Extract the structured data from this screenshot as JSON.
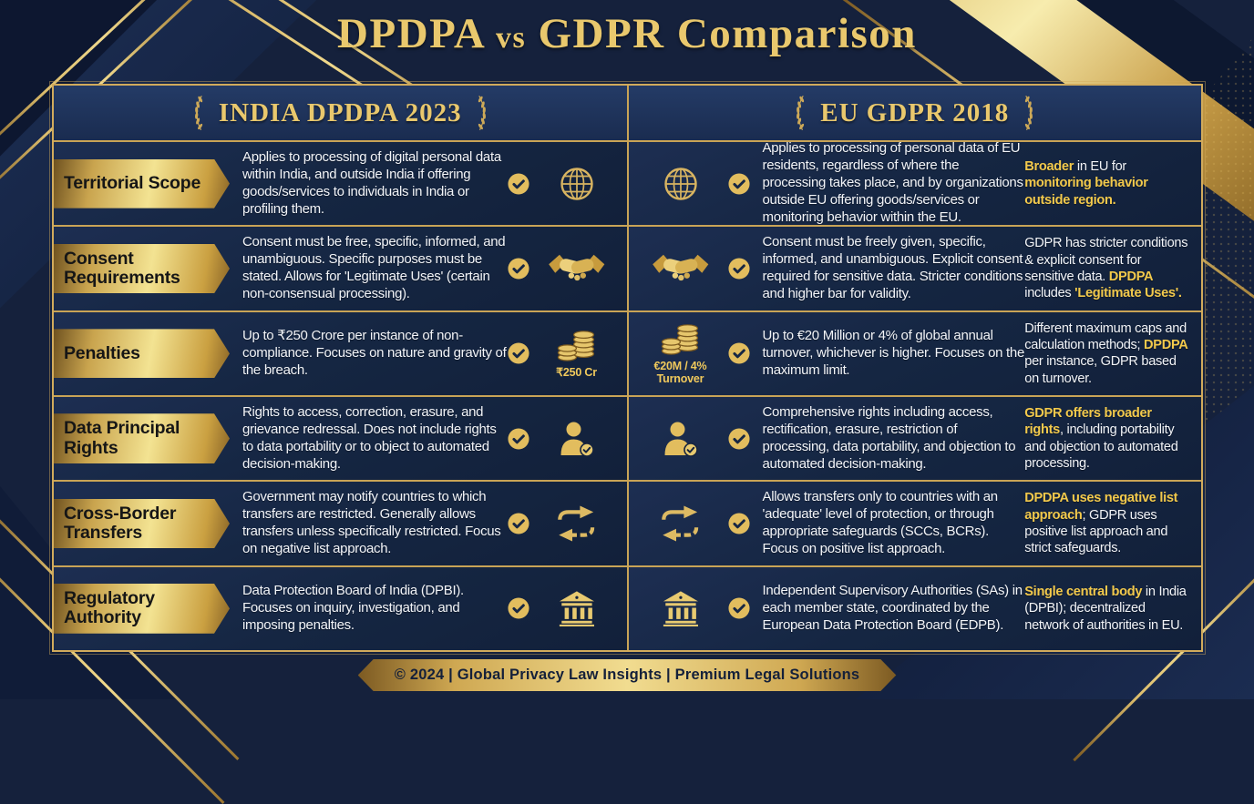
{
  "title": {
    "left": "DPDPA",
    "vs": "vs",
    "right": "GDPR Comparison"
  },
  "colors": {
    "background_navy": "#15213c",
    "cell_navy": "#152642",
    "gold_accent": "#d2ab5c",
    "gold_bright": "#f3e392",
    "highlight_text": "#f2c94c",
    "body_text": "#f2f4f8",
    "badge_text": "#161616"
  },
  "table": {
    "headers": {
      "left": "INDIA DPDPA 2023",
      "right": "EU GDPR 2018"
    },
    "rows": [
      {
        "label": "Territorial Scope",
        "icon": "globe",
        "dpdpa": {
          "text": "Applies to processing of digital personal data within India, and outside India if offering goods/services to individuals in India or profiling them."
        },
        "gdpr": {
          "text": "Applies to processing of personal data of EU residents, regardless of where the processing takes place, and by organizations outside EU offering goods/services or monitoring behavior within the EU.",
          "note_segments": [
            {
              "text": "Broader",
              "highlight": true
            },
            {
              "text": " in EU for ",
              "highlight": false
            },
            {
              "text": "monitoring behavior outside region.",
              "highlight": true
            }
          ]
        }
      },
      {
        "label": "Consent Requirements",
        "icon": "handshake",
        "dpdpa": {
          "text": "Consent must be free, specific, informed, and unambiguous. Specific purposes must be stated. Allows for 'Legitimate Uses' (certain non-consensual processing)."
        },
        "gdpr": {
          "text": "Consent must be freely given, specific, informed, and unambiguous. Explicit consent required for sensitive data. Stricter conditions and higher bar for validity.",
          "note_segments": [
            {
              "text": "GDPR has stricter conditions & explicit consent for sensitive data. ",
              "highlight": false
            },
            {
              "text": "DPDPA",
              "highlight": true
            },
            {
              "text": " includes ",
              "highlight": false
            },
            {
              "text": "'Legitimate Uses'.",
              "highlight": true
            }
          ]
        }
      },
      {
        "label": "Penalties",
        "icon": "coins",
        "dpdpa": {
          "text": "Up to ₹250 Crore per instance of non-compliance. Focuses on nature and gravity of the breach.",
          "icon_caption": "₹250 Cr"
        },
        "gdpr": {
          "text": "Up to €20 Million or 4% of global annual turnover, whichever is higher. Focuses on the maximum limit.",
          "icon_caption": "€20M / 4% Turnover",
          "note_segments": [
            {
              "text": "Different maximum caps and calculation methods; ",
              "highlight": false
            },
            {
              "text": "DPDPA",
              "highlight": true
            },
            {
              "text": " per instance, GDPR based on turnover.",
              "highlight": false
            }
          ]
        }
      },
      {
        "label": "Data Principal Rights",
        "icon": "person-check",
        "dpdpa": {
          "text": "Rights to access, correction, erasure, and grievance redressal. Does not include rights to data portability or to object to automated decision-making."
        },
        "gdpr": {
          "text": "Comprehensive rights including access, rectification, erasure, restriction of processing, data portability, and objection to automated decision-making.",
          "note_segments": [
            {
              "text": "GDPR offers broader rights",
              "highlight": true
            },
            {
              "text": ", including portability and objection to automated processing.",
              "highlight": false
            }
          ]
        }
      },
      {
        "label": "Cross-Border Transfers",
        "icon": "transfer-arrows",
        "dpdpa": {
          "text": "Government may notify countries to which transfers are restricted. Generally allows transfers unless specifically restricted. Focus on negative list approach."
        },
        "gdpr": {
          "text": "Allows transfers only to countries with an 'adequate' level of protection, or through appropriate safeguards (SCCs, BCRs). Focus on positive list approach.",
          "note_segments": [
            {
              "text": "DPDPA uses negative list approach",
              "highlight": true
            },
            {
              "text": "; GDPR uses positive list approach and strict safeguards.",
              "highlight": false
            }
          ]
        }
      },
      {
        "label": "Regulatory Authority",
        "icon": "bank",
        "dpdpa": {
          "text": "Data Protection Board of India (DPBI). Focuses on inquiry, investigation, and imposing penalties."
        },
        "gdpr": {
          "text": "Independent Supervisory Authorities (SAs) in each member state, coordinated by the European Data Protection Board (EDPB).",
          "note_segments": [
            {
              "text": "Single central body",
              "highlight": true
            },
            {
              "text": " in India (DPBI); decentralized network of authorities in EU.",
              "highlight": false
            }
          ]
        }
      }
    ]
  },
  "footer": "© 2024 | Global Privacy Law Insights | Premium Legal Solutions"
}
